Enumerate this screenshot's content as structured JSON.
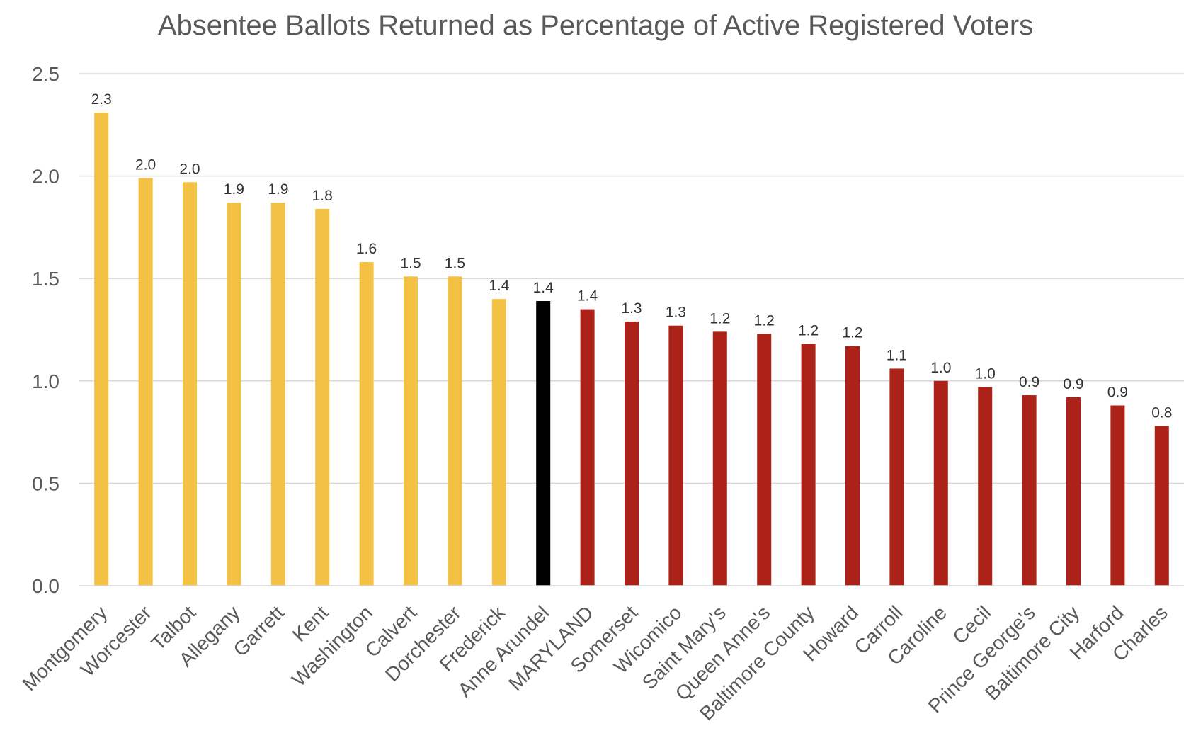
{
  "chart_data": {
    "type": "bar",
    "title": "Absentee Ballots Returned as Percentage of Active Registered Voters",
    "xlabel": "",
    "ylabel": "",
    "ylim": [
      0,
      2.5
    ],
    "yticks": [
      0.0,
      0.5,
      1.0,
      1.5,
      2.0,
      2.5
    ],
    "ytick_labels": [
      "0.0",
      "0.5",
      "1.0",
      "1.5",
      "2.0",
      "2.5"
    ],
    "grid": "horizontal",
    "legend": "none",
    "categories": [
      "Montgomery",
      "Worcester",
      "Talbot",
      "Allegany",
      "Garrett",
      "Kent",
      "Washington",
      "Calvert",
      "Dorchester",
      "Frederick",
      "Anne Arundel",
      "MARYLAND",
      "Somerset",
      "Wicomico",
      "Saint Mary's",
      "Queen Anne's",
      "Baltimore County",
      "Howard",
      "Carroll",
      "Caroline",
      "Cecil",
      "Prince George's",
      "Baltimore City",
      "Harford",
      "Charles"
    ],
    "values": [
      2.31,
      1.99,
      1.97,
      1.87,
      1.87,
      1.84,
      1.58,
      1.51,
      1.51,
      1.4,
      1.39,
      1.35,
      1.29,
      1.27,
      1.24,
      1.23,
      1.18,
      1.17,
      1.06,
      1.0,
      0.97,
      0.93,
      0.92,
      0.88,
      0.78
    ],
    "data_labels": [
      "2.3",
      "2.0",
      "2.0",
      "1.9",
      "1.9",
      "1.8",
      "1.6",
      "1.5",
      "1.5",
      "1.4",
      "1.4",
      "1.4",
      "1.3",
      "1.3",
      "1.2",
      "1.2",
      "1.2",
      "1.2",
      "1.1",
      "1.0",
      "1.0",
      "0.9",
      "0.9",
      "0.9",
      "0.8"
    ],
    "bar_colors": [
      "#F3C244",
      "#F3C244",
      "#F3C244",
      "#F3C244",
      "#F3C244",
      "#F3C244",
      "#F3C244",
      "#F3C244",
      "#F3C244",
      "#F3C244",
      "#000000",
      "#AC2218",
      "#AC2218",
      "#AC2218",
      "#AC2218",
      "#AC2218",
      "#AC2218",
      "#AC2218",
      "#AC2218",
      "#AC2218",
      "#AC2218",
      "#AC2218",
      "#AC2218",
      "#AC2218",
      "#AC2218"
    ],
    "colors": {
      "gold": "#F3C244",
      "black": "#000000",
      "red": "#AC2218",
      "grid": "#D9D9D9",
      "text": "#595959"
    }
  }
}
